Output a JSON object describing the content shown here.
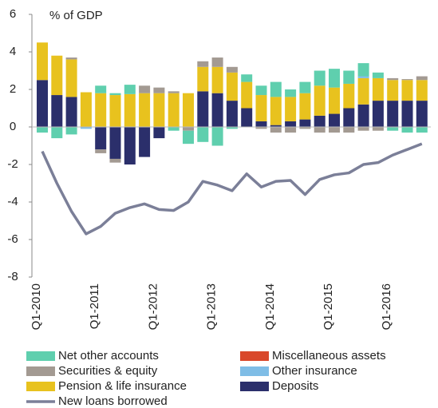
{
  "chart_data": {
    "type": "stacked_bar_line",
    "y_label": "% of GDP",
    "categories": [
      "Q1-2010",
      null,
      null,
      null,
      "Q1-2011",
      null,
      null,
      null,
      "Q1-2012",
      null,
      null,
      null,
      "Q1-2013",
      null,
      null,
      null,
      "Q1-2014",
      null,
      null,
      null,
      "Q1-2015",
      null,
      null,
      null,
      "Q1-2016",
      null,
      null
    ],
    "ylim": [
      -8,
      6
    ],
    "yticks": [
      -8,
      -6,
      -4,
      -2,
      0,
      2,
      4,
      6
    ],
    "series": [
      {
        "name": "Deposits",
        "color": "#2b2f6b",
        "values": [
          2.5,
          1.7,
          1.6,
          0,
          -1.2,
          -1.7,
          -2.0,
          -1.6,
          -0.6,
          0,
          0,
          1.9,
          1.8,
          1.4,
          1.0,
          0.3,
          0.1,
          0.3,
          0.4,
          0.6,
          0.7,
          1.0,
          1.2,
          1.4,
          1.4,
          1.4,
          1.4
        ]
      },
      {
        "name": "Pension & life insurance",
        "color": "#e8c21e",
        "values": [
          2.0,
          2.1,
          2.0,
          1.85,
          1.8,
          1.7,
          1.75,
          1.8,
          1.8,
          1.8,
          1.8,
          1.3,
          1.4,
          1.5,
          1.4,
          1.4,
          1.5,
          1.3,
          1.4,
          1.6,
          1.4,
          1.3,
          1.4,
          1.2,
          1.1,
          1.1,
          1.1
        ]
      },
      {
        "name": "Other insurance",
        "color": "#7fbde6",
        "values": [
          0,
          0,
          0,
          -0.1,
          0,
          0,
          0,
          0,
          0,
          0,
          0,
          0,
          0,
          0,
          0,
          0,
          0,
          0,
          0,
          0,
          0,
          0,
          0.1,
          0,
          0,
          0,
          0
        ]
      },
      {
        "name": "Securities & equity",
        "color": "#a39a92",
        "values": [
          0,
          0,
          0.1,
          0,
          -0.2,
          -0.2,
          0,
          0.4,
          0.3,
          0.1,
          -0.2,
          0.3,
          0.5,
          0.3,
          0,
          -0.1,
          -0.3,
          -0.3,
          -0.1,
          -0.3,
          -0.3,
          -0.3,
          -0.2,
          -0.2,
          0.1,
          0.05,
          0.2
        ]
      },
      {
        "name": "Miscellaneous assets",
        "color": "#d9482b",
        "values": [
          0,
          0,
          0,
          0,
          0,
          0,
          0,
          0,
          0,
          0,
          0,
          0,
          0,
          0,
          0,
          0,
          0,
          0,
          0,
          0,
          0,
          0,
          0,
          0,
          0,
          0,
          0
        ]
      },
      {
        "name": "Net other accounts",
        "color": "#5fcfae",
        "values": [
          -0.3,
          -0.6,
          -0.4,
          0,
          0.4,
          0.1,
          0.5,
          0,
          0,
          -0.2,
          -0.7,
          -0.8,
          -1.0,
          -0.1,
          0.4,
          0.5,
          0.8,
          0.4,
          0.6,
          0.8,
          1.0,
          0.7,
          0.7,
          0.3,
          -0.2,
          -0.3,
          -0.3
        ]
      },
      {
        "name": "New loans borrowed",
        "color": "#7b7f98",
        "type": "line",
        "values": [
          -1.3,
          -3.0,
          -4.5,
          -5.7,
          -5.3,
          -4.6,
          -4.3,
          -4.1,
          -4.4,
          -4.45,
          -4.0,
          -2.9,
          -3.1,
          -3.4,
          -2.5,
          -3.2,
          -2.9,
          -2.85,
          -3.6,
          -2.8,
          -2.55,
          -2.45,
          -2.0,
          -1.9,
          -1.5,
          -1.2,
          -0.9
        ]
      }
    ]
  }
}
